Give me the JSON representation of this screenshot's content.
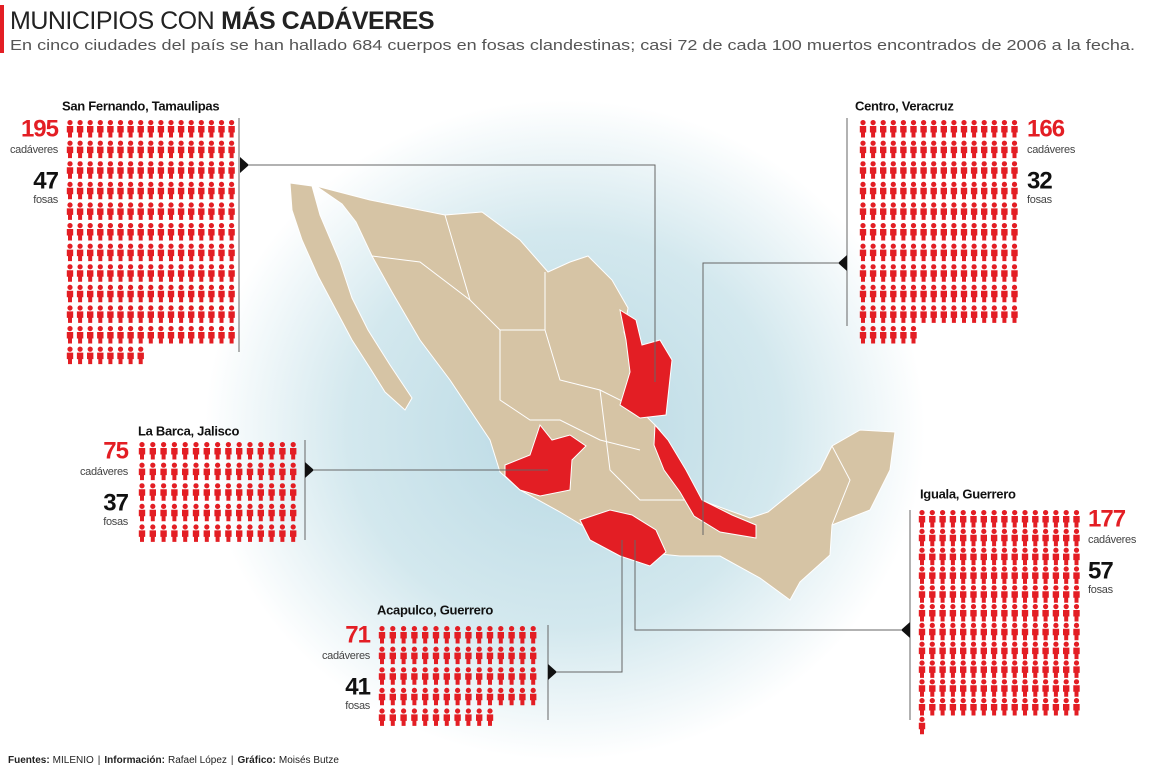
{
  "header": {
    "title_regular": "MUNICIPIOS CON",
    "title_bold": "MÁS CADÁVERES",
    "subtitle": "En cinco ciudades del país se han hallado 684 cuerpos en fosas clandestinas; casi 72 de cada 100 muertos encontrados de 2006 a la fecha."
  },
  "panels": [
    {
      "place": "San Fernando, Tamaulipas",
      "cadaveres": 195,
      "cadaveres_label": "cadáveres",
      "fosas": 47,
      "fosas_label": "fosas"
    },
    {
      "place": "Centro, Veracruz",
      "cadaveres": 166,
      "cadaveres_label": "cadáveres",
      "fosas": 32,
      "fosas_label": "fosas"
    },
    {
      "place": "La Barca, Jalisco",
      "cadaveres": 75,
      "cadaveres_label": "cadáveres",
      "fosas": 37,
      "fosas_label": "fosas"
    },
    {
      "place": "Acapulco, Guerrero",
      "cadaveres": 71,
      "cadaveres_label": "cadáveres",
      "fosas": 41,
      "fosas_label": "fosas"
    },
    {
      "place": "Iguala, Guerrero",
      "cadaveres": 177,
      "cadaveres_label": "cadáveres",
      "fosas": 57,
      "fosas_label": "fosas"
    }
  ],
  "footer": {
    "separator": "|",
    "credits": [
      {
        "label": "Fuentes:",
        "value": "MILENIO"
      },
      {
        "label": "Información:",
        "value": "Rafael López"
      },
      {
        "label": "Gráfico:",
        "value": "Moisés Butze"
      }
    ]
  }
}
